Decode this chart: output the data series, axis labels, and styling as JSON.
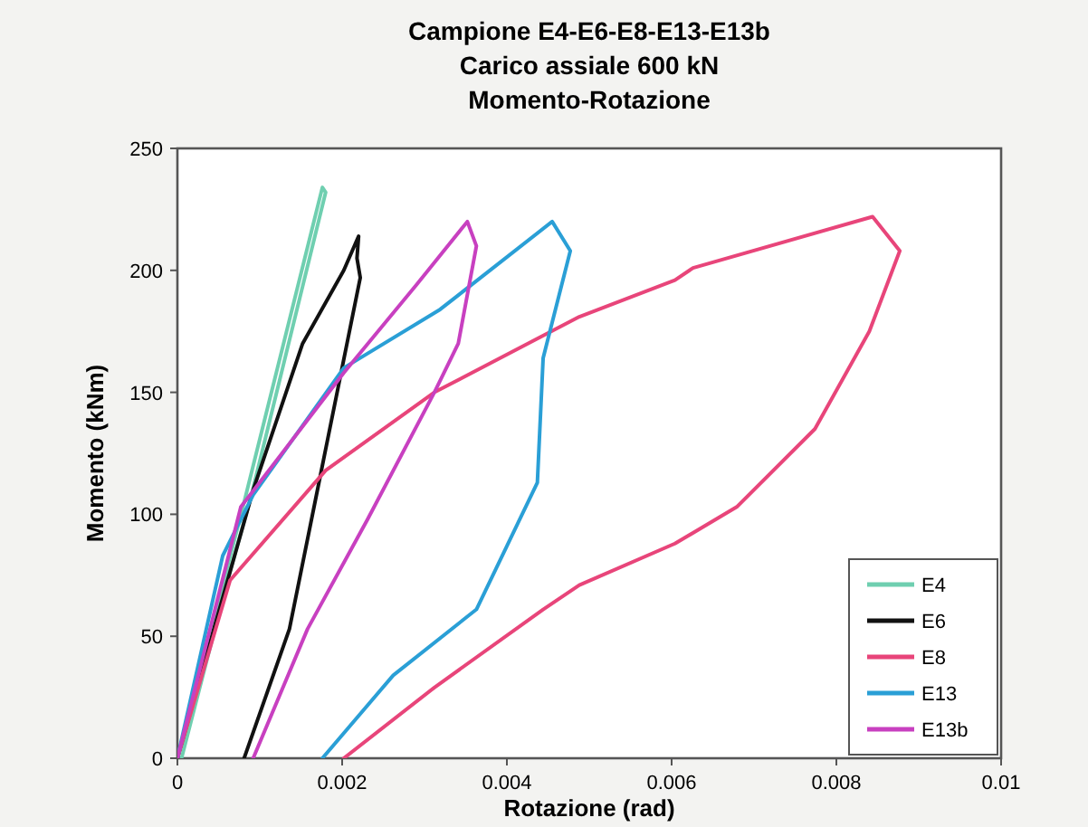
{
  "chart_data": {
    "type": "line",
    "title": "Campione E4-E6-E8-E13-E13b\nCarico assiale 600 kN\nMomento-Rotazione",
    "xlabel": "Rotazione (rad)",
    "ylabel": "Momento (kNm)",
    "xlim": [
      0,
      0.01
    ],
    "ylim": [
      0,
      250
    ],
    "xticks": [
      0,
      0.002,
      0.004,
      0.006,
      0.008,
      0.01
    ],
    "yticks": [
      0,
      50,
      100,
      150,
      200,
      250
    ],
    "grid": false,
    "legend": "bottom right",
    "marker": "none",
    "line_style": "solid",
    "series": [
      {
        "name": "E4",
        "color": "#6fcfb0",
        "x": [
          0,
          0.00055,
          0.00081,
          0.00176,
          0.0018,
          0.0009,
          0.0006,
          5e-05
        ],
        "values": [
          0,
          71,
          105,
          234,
          232,
          108,
          72,
          0
        ]
      },
      {
        "name": "E6",
        "color": "#111111",
        "x": [
          0,
          0.00092,
          0.00152,
          0.00202,
          0.0022,
          0.00218,
          0.00222,
          0.00176,
          0.00136,
          0.00081
        ],
        "values": [
          0,
          110,
          170,
          200,
          214,
          205,
          197,
          120,
          53,
          0
        ]
      },
      {
        "name": "E8",
        "color": "#e8457a",
        "x": [
          0,
          0.00064,
          0.0018,
          0.00312,
          0.00488,
          0.00604,
          0.00626,
          0.00844,
          0.00877,
          0.0084,
          0.00774,
          0.00679,
          0.00604,
          0.00488,
          0.00444,
          0.00312,
          0.00202
        ],
        "values": [
          0,
          73,
          118,
          150,
          181,
          196,
          201,
          222,
          208,
          175,
          135,
          103,
          88,
          71,
          61,
          29,
          0
        ]
      },
      {
        "name": "E13",
        "color": "#2a9fd6",
        "x": [
          0,
          0.00055,
          0.00092,
          0.00202,
          0.00319,
          0.00455,
          0.00477,
          0.00444,
          0.00437,
          0.00363,
          0.00262,
          0.00176
        ],
        "values": [
          0,
          83,
          108,
          160,
          184,
          220,
          208,
          164,
          113,
          61,
          34,
          0
        ]
      },
      {
        "name": "E13b",
        "color": "#c840c0",
        "x": [
          0,
          0.00077,
          0.00202,
          0.0029,
          0.00352,
          0.00363,
          0.00341,
          0.00312,
          0.00231,
          0.00158,
          0.00092
        ],
        "values": [
          0,
          103,
          158,
          194,
          220,
          210,
          170,
          150,
          98,
          53,
          0
        ]
      }
    ]
  }
}
